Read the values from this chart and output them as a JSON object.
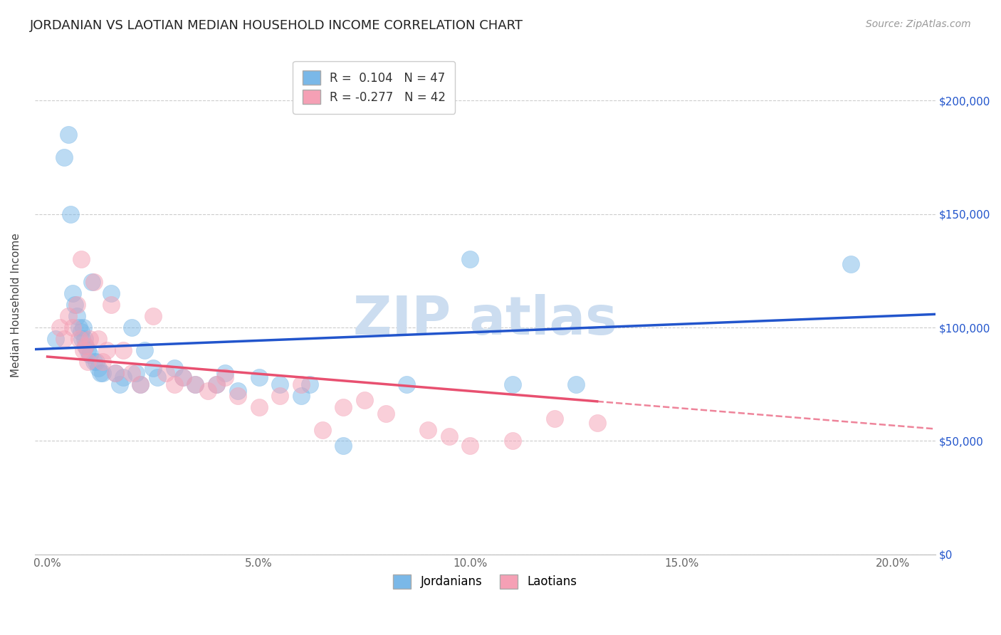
{
  "title": "JORDANIAN VS LAOTIAN MEDIAN HOUSEHOLD INCOME CORRELATION CHART",
  "source": "Source: ZipAtlas.com",
  "xlabel_ticks": [
    "0.0%",
    "5.0%",
    "10.0%",
    "15.0%",
    "20.0%"
  ],
  "xlabel_vals": [
    0.0,
    5.0,
    10.0,
    15.0,
    20.0
  ],
  "ylabel": "Median Household Income",
  "ylabel_ticks": [
    0,
    50000,
    100000,
    150000,
    200000
  ],
  "ylabel_labels": [
    "$0",
    "$50,000",
    "$100,000",
    "$150,000",
    "$200,000"
  ],
  "ymin": 0,
  "ymax": 220000,
  "xmin": -0.3,
  "xmax": 21.0,
  "jordanians_R": 0.104,
  "jordanians_N": 47,
  "laotians_R": -0.277,
  "laotians_N": 42,
  "blue_color": "#7ab8e8",
  "pink_color": "#f5a0b5",
  "blue_line_color": "#2255cc",
  "pink_line_color": "#e85070",
  "watermark_color": "#ccddf0",
  "background_color": "#ffffff",
  "jordanians_x": [
    0.2,
    0.4,
    0.5,
    0.55,
    0.6,
    0.65,
    0.7,
    0.75,
    0.8,
    0.82,
    0.85,
    0.88,
    0.9,
    0.95,
    1.0,
    1.05,
    1.1,
    1.15,
    1.2,
    1.25,
    1.3,
    1.5,
    1.6,
    1.7,
    1.8,
    2.0,
    2.1,
    2.2,
    2.3,
    2.5,
    2.6,
    3.0,
    3.2,
    3.5,
    4.0,
    4.2,
    4.5,
    5.0,
    5.5,
    6.0,
    6.2,
    7.0,
    8.5,
    10.0,
    11.0,
    12.5,
    19.0
  ],
  "jordanians_y": [
    95000,
    175000,
    185000,
    150000,
    115000,
    110000,
    105000,
    100000,
    98000,
    95000,
    100000,
    95000,
    92000,
    90000,
    88000,
    120000,
    85000,
    85000,
    82000,
    80000,
    80000,
    115000,
    80000,
    75000,
    78000,
    100000,
    80000,
    75000,
    90000,
    82000,
    78000,
    82000,
    78000,
    75000,
    75000,
    80000,
    72000,
    78000,
    75000,
    70000,
    75000,
    48000,
    75000,
    130000,
    75000,
    75000,
    128000
  ],
  "laotians_x": [
    0.3,
    0.4,
    0.5,
    0.6,
    0.7,
    0.75,
    0.8,
    0.85,
    0.9,
    0.95,
    1.0,
    1.1,
    1.2,
    1.3,
    1.4,
    1.5,
    1.6,
    1.8,
    2.0,
    2.2,
    2.5,
    2.8,
    3.0,
    3.2,
    3.5,
    3.8,
    4.0,
    4.2,
    4.5,
    5.0,
    5.5,
    6.0,
    6.5,
    7.0,
    7.5,
    8.0,
    9.0,
    9.5,
    10.0,
    11.0,
    12.0,
    13.0
  ],
  "laotians_y": [
    100000,
    95000,
    105000,
    100000,
    110000,
    95000,
    130000,
    90000,
    92000,
    85000,
    95000,
    120000,
    95000,
    85000,
    90000,
    110000,
    80000,
    90000,
    80000,
    75000,
    105000,
    80000,
    75000,
    78000,
    75000,
    72000,
    75000,
    78000,
    70000,
    65000,
    70000,
    75000,
    55000,
    65000,
    68000,
    62000,
    55000,
    52000,
    48000,
    50000,
    60000,
    58000
  ],
  "title_fontsize": 13,
  "axis_label_fontsize": 11,
  "tick_fontsize": 11,
  "legend_fontsize": 12,
  "source_fontsize": 10
}
